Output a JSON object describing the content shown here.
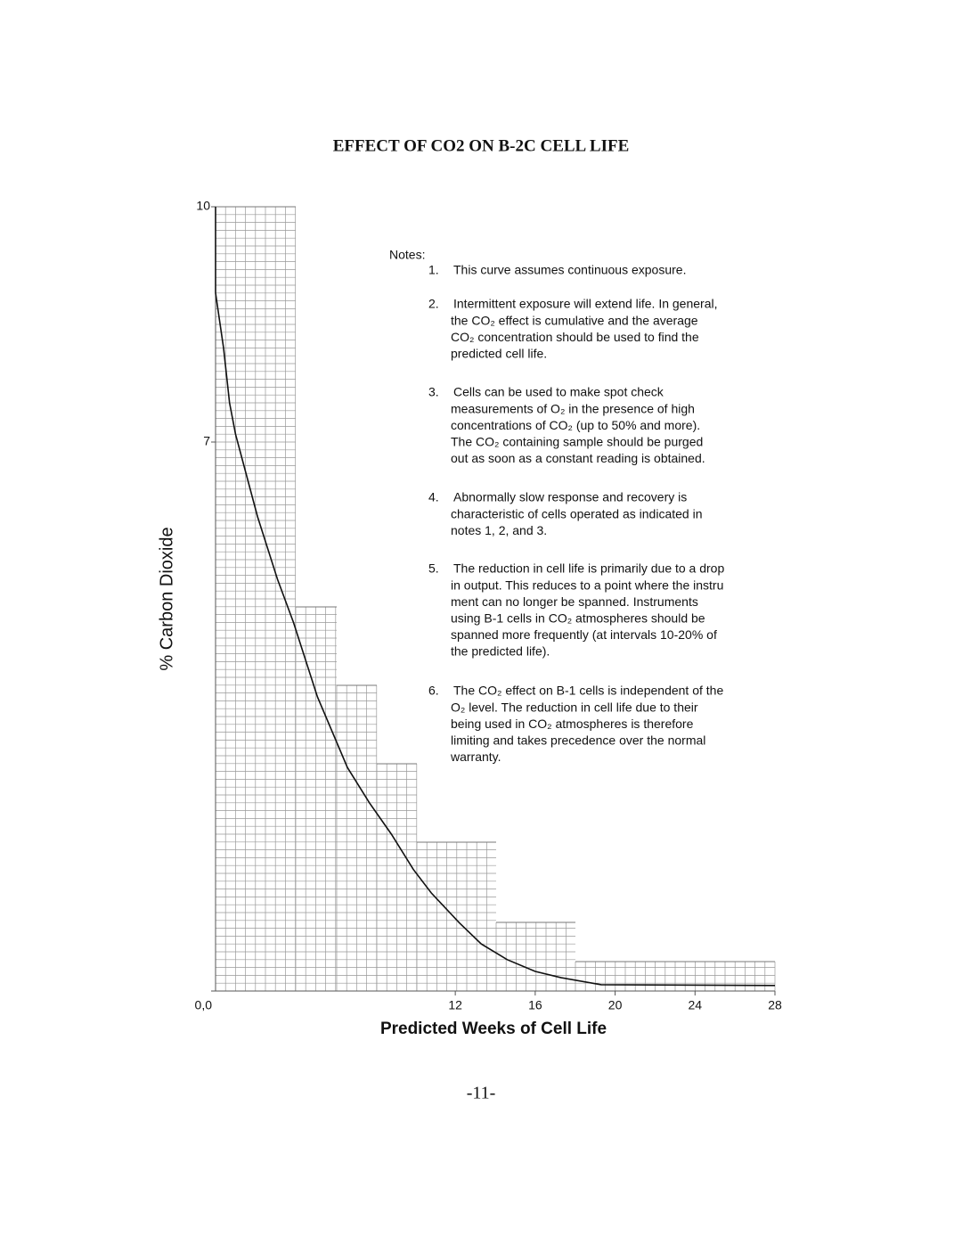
{
  "chart_data": {
    "type": "line",
    "title": "EFFECT OF CO2 ON B-2C CELL LIFE",
    "x_label": "Predicted Weeks of Cell Life",
    "y_label": "% Carbon Dioxide",
    "x": [
      0,
      0,
      0.4,
      0.7,
      1.0,
      2.1,
      3.1,
      3.9,
      5.1,
      6.6,
      7.7,
      8.8,
      9.9,
      10.8,
      12.2,
      13.3,
      14.6,
      16.0,
      17.3,
      19.3,
      28
    ],
    "values": [
      10,
      8.9,
      8.2,
      7.5,
      7.1,
      6.05,
      5.25,
      4.7,
      3.75,
      2.85,
      2.4,
      2.0,
      1.55,
      1.25,
      0.87,
      0.6,
      0.4,
      0.25,
      0.17,
      0.08,
      0.07
    ],
    "color": "#111111",
    "xlim": [
      0,
      28
    ],
    "ylim": [
      0,
      10
    ],
    "xticks": [
      12,
      16,
      20,
      24,
      28
    ],
    "yticks": [
      {
        "value": 0,
        "label": "0,0"
      },
      7,
      10
    ],
    "grid": true
  },
  "notes": {
    "heading": "Notes:",
    "items": [
      {
        "number": "1.",
        "lines": [
          "This curve assumes continuous exposure."
        ]
      },
      {
        "number": "2.",
        "lines": [
          "Intermittent exposure will extend life. In general,",
          "the CO₂ effect is cumulative and the average",
          "CO₂ concentration should be used to find the",
          "predicted cell life."
        ]
      },
      {
        "number": "3.",
        "lines": [
          "Cells can be used to make spot check",
          "measurements of O₂ in the presence of high",
          "concentrations of CO₂ (up to 50% and more).",
          "The CO₂ containing sample should be purged",
          "out as soon as a constant reading is obtained."
        ]
      },
      {
        "number": "4.",
        "lines": [
          "Abnormally slow response and recovery is",
          "characteristic of cells operated as indicated in",
          "notes 1, 2, and 3."
        ]
      },
      {
        "number": "5.",
        "lines": [
          "The reduction in cell life is primarily due to a drop",
          "in output. This reduces to a point where the instru",
          "ment can no longer be spanned. Instruments",
          "using B-1 cells in CO₂ atmospheres should be",
          "spanned more frequently (at intervals 10-20% of",
          "the predicted life)."
        ]
      },
      {
        "number": "6.",
        "lines": [
          "The CO₂ effect on B-1 cells is independent of the",
          "O₂ level. The reduction in cell life due to their",
          "being used in CO₂ atmospheres is therefore",
          "limiting and takes precedence over the normal",
          "warranty."
        ]
      }
    ]
  },
  "page_number": "-11-"
}
